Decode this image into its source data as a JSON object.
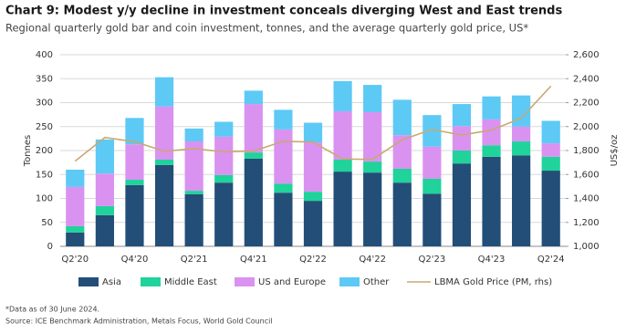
{
  "chart_data": {
    "type": "stacked-bar-line",
    "title": "Chart 9: Modest y/y decline in investment conceals diverging West and East trends",
    "subtitle": "Regional quarterly gold bar and coin investment, tonnes, and the average quarterly gold price, US*",
    "y_label": "Tonnes",
    "y2_label": "US$/oz",
    "categories": [
      "Q2'20",
      null,
      "Q4'20",
      null,
      "Q2'21",
      null,
      "Q4'21",
      null,
      "Q2'22",
      null,
      "Q4'22",
      null,
      "Q2'23",
      null,
      "Q4'23",
      null,
      "Q2'24"
    ],
    "series": [
      {
        "name": "Asia",
        "color": "#234e78",
        "values": [
          29,
          65,
          128,
          170,
          109,
          133,
          183,
          112,
          95,
          156,
          154,
          133,
          110,
          173,
          187,
          190,
          158
        ]
      },
      {
        "name": "Middle East",
        "color": "#1fd39b",
        "values": [
          13,
          19,
          11,
          11,
          7,
          16,
          13,
          19,
          19,
          25,
          23,
          29,
          31,
          27,
          24,
          29,
          29
        ]
      },
      {
        "name": "US and Europe",
        "color": "#da92f0",
        "values": [
          82,
          68,
          74,
          111,
          103,
          80,
          101,
          113,
          103,
          101,
          103,
          70,
          67,
          51,
          54,
          31,
          28
        ]
      },
      {
        "name": "Other",
        "color": "#5dc9f5",
        "values": [
          36,
          71,
          55,
          61,
          27,
          31,
          28,
          41,
          41,
          63,
          57,
          74,
          66,
          46,
          48,
          65,
          47
        ]
      },
      {
        "name": "LBMA Gold Price (PM, rhs)",
        "color": "#c9a872",
        "axis": "y2",
        "type": "line",
        "values": [
          1711,
          1909,
          1874,
          1794,
          1816,
          1789,
          1796,
          1877,
          1871,
          1729,
          1726,
          1890,
          1976,
          1929,
          1971,
          2070,
          2338
        ]
      }
    ],
    "ylim": [
      0,
      400
    ],
    "yticks": [
      0,
      50,
      100,
      150,
      200,
      250,
      300,
      350,
      400
    ],
    "y2lim": [
      1000,
      2600
    ],
    "y2ticks": [
      {
        "value": 1000,
        "label": "1,000"
      },
      {
        "value": 1200,
        "label": "1,200"
      },
      {
        "value": 1400,
        "label": "1,400"
      },
      {
        "value": 1600,
        "label": "1,600"
      },
      {
        "value": 1800,
        "label": "1,800"
      },
      {
        "value": 2000,
        "label": "2,000"
      },
      {
        "value": 2200,
        "label": "2,200"
      },
      {
        "value": 2400,
        "label": "2,400"
      },
      {
        "value": 2600,
        "label": "2,600"
      }
    ],
    "grid": true,
    "notes": [
      "*Data as of 30 June 2024.",
      "Source: ICE Benchmark Administration, Metals Focus, World Gold Council"
    ]
  }
}
